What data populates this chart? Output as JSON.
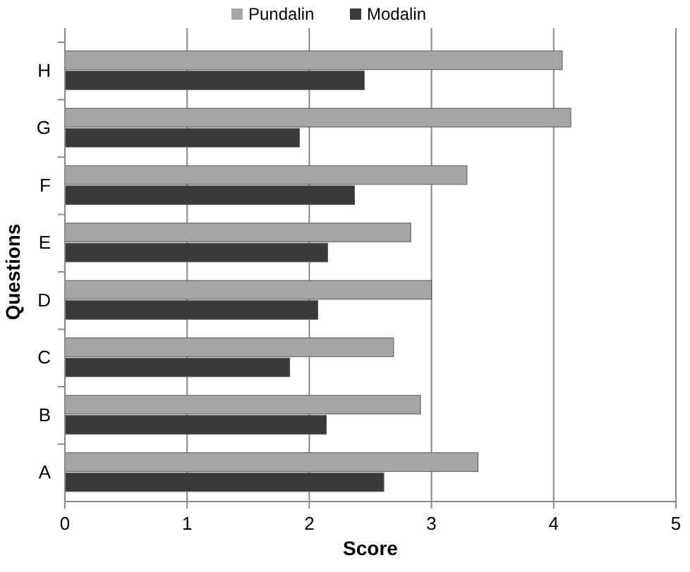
{
  "chart_data": {
    "type": "bar",
    "orientation": "horizontal",
    "xlabel": "Score",
    "ylabel": "Questions",
    "categories": [
      "H",
      "G",
      "F",
      "E",
      "D",
      "C",
      "B",
      "A"
    ],
    "series": [
      {
        "name": "Pundalin",
        "color": "#a6a6a6",
        "values": [
          4.07,
          4.14,
          3.29,
          2.83,
          3.0,
          2.69,
          2.91,
          3.38
        ]
      },
      {
        "name": "Modalin",
        "color": "#3a3a3a",
        "values": [
          2.45,
          1.92,
          2.37,
          2.15,
          2.07,
          1.84,
          2.14,
          2.61
        ]
      }
    ],
    "xlim": [
      0,
      5
    ],
    "xticks": [
      0,
      1,
      2,
      3,
      4,
      5
    ],
    "grid": "x",
    "legend": "top"
  }
}
